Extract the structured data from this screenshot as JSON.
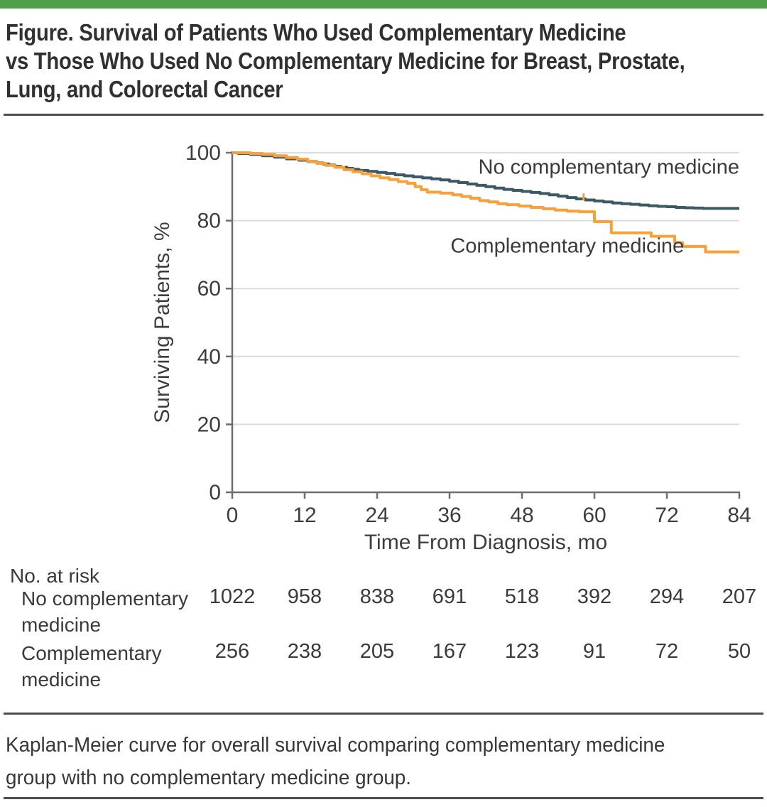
{
  "accent_bar_color": "#50a04b",
  "figure": {
    "title_lines": [
      "Figure. Survival of Patients Who Used Complementary Medicine",
      "vs Those Who Used No Complementary Medicine for Breast, Prostate,",
      "Lung, and Colorectal Cancer"
    ],
    "caption_lines": [
      "Kaplan-Meier curve for overall survival comparing complementary medicine",
      "group with no complementary medicine group."
    ]
  },
  "chart_data": {
    "type": "line",
    "style": "kaplan-meier-step",
    "title": "",
    "xlabel": "Time From Diagnosis, mo",
    "ylabel": "Surviving Patients, %",
    "xlim": [
      0,
      84
    ],
    "ylim": [
      0,
      100
    ],
    "xticks": [
      0,
      12,
      24,
      36,
      48,
      60,
      72,
      84
    ],
    "yticks": [
      0,
      20,
      40,
      60,
      80,
      100
    ],
    "grid": "horizontal-light",
    "legend": "inline-annotations",
    "series": [
      {
        "id": "no-complementary",
        "name": "No complementary medicine",
        "color": "#3c5a66",
        "label_anchor": {
          "x": 84,
          "y": 93.8,
          "align": "end"
        },
        "points": [
          [
            0,
            100
          ],
          [
            1,
            99.8
          ],
          [
            3,
            99.5
          ],
          [
            5,
            99.1
          ],
          [
            7,
            98.7
          ],
          [
            9,
            98.2
          ],
          [
            11,
            97.8
          ],
          [
            12.5,
            97.4
          ],
          [
            14,
            97.0
          ],
          [
            15,
            96.7
          ],
          [
            16,
            96.4
          ],
          [
            17,
            96.0
          ],
          [
            18,
            95.7
          ],
          [
            19,
            95.4
          ],
          [
            20,
            95.1
          ],
          [
            21,
            94.8
          ],
          [
            22.5,
            94.5
          ],
          [
            24,
            94.2
          ],
          [
            25.5,
            93.9
          ],
          [
            27,
            93.5
          ],
          [
            28.5,
            93.2
          ],
          [
            30,
            92.9
          ],
          [
            31.5,
            92.6
          ],
          [
            33,
            92.3
          ],
          [
            34.5,
            92.0
          ],
          [
            36,
            91.6
          ],
          [
            37.5,
            91.2
          ],
          [
            39,
            90.8
          ],
          [
            40.5,
            90.4
          ],
          [
            42,
            90.0
          ],
          [
            43.5,
            89.6
          ],
          [
            45,
            89.2
          ],
          [
            46.5,
            88.9
          ],
          [
            48,
            88.6
          ],
          [
            49.5,
            88.3
          ],
          [
            51,
            88.0
          ],
          [
            52.5,
            87.6
          ],
          [
            54,
            87.2
          ],
          [
            55.5,
            86.8
          ],
          [
            57,
            86.4
          ],
          [
            58.5,
            86.1
          ],
          [
            60,
            85.8
          ],
          [
            61.5,
            85.5
          ],
          [
            63,
            85.2
          ],
          [
            64.5,
            85.0
          ],
          [
            66,
            84.8
          ],
          [
            67.5,
            84.6
          ],
          [
            69,
            84.4
          ],
          [
            70.5,
            84.2
          ],
          [
            72,
            84.1
          ],
          [
            73.5,
            83.9
          ],
          [
            75,
            83.8
          ],
          [
            76.5,
            83.7
          ],
          [
            78,
            83.6
          ],
          [
            84,
            83.6
          ]
        ]
      },
      {
        "id": "complementary",
        "name": "Complementary medicine",
        "color": "#f6a13c",
        "label_anchor": {
          "x": 55.5,
          "y": 70.6,
          "align": "middle"
        },
        "points": [
          [
            0,
            100
          ],
          [
            3,
            99.8
          ],
          [
            5,
            99.5
          ],
          [
            7,
            99.1
          ],
          [
            9,
            98.6
          ],
          [
            10.8,
            98.1
          ],
          [
            12.5,
            97.5
          ],
          [
            14,
            96.9
          ],
          [
            15.5,
            96.3
          ],
          [
            17,
            95.7
          ],
          [
            18.5,
            95.0
          ],
          [
            20,
            94.4
          ],
          [
            21.5,
            93.8
          ],
          [
            23,
            93.2
          ],
          [
            24.5,
            92.6
          ],
          [
            26,
            92.1
          ],
          [
            27.5,
            91.5
          ],
          [
            29,
            91.0
          ],
          [
            30.3,
            90.0
          ],
          [
            31.3,
            89.1
          ],
          [
            32.3,
            88.4
          ],
          [
            34.5,
            88.1
          ],
          [
            36.5,
            87.6
          ],
          [
            38,
            87.1
          ],
          [
            39.5,
            86.6
          ],
          [
            41,
            85.9
          ],
          [
            42.5,
            85.5
          ],
          [
            44,
            85.0
          ],
          [
            45.5,
            84.7
          ],
          [
            47.5,
            84.3
          ],
          [
            49.5,
            83.9
          ],
          [
            51.5,
            83.5
          ],
          [
            53.5,
            83.1
          ],
          [
            55.5,
            82.8
          ],
          [
            57.5,
            82.6
          ],
          [
            60,
            79.7
          ],
          [
            62.8,
            76.4
          ],
          [
            69.4,
            75.4
          ],
          [
            73.3,
            73.5
          ],
          [
            74.6,
            72.4
          ],
          [
            78.4,
            70.8
          ],
          [
            84,
            70.8
          ]
        ]
      }
    ],
    "censor_marks": [
      {
        "series": "complementary",
        "x": 58.2,
        "y": 87
      }
    ]
  },
  "at_risk": {
    "heading": "No. at risk",
    "time_points": [
      0,
      12,
      24,
      36,
      48,
      60,
      72,
      84
    ],
    "rows": [
      {
        "label": "No complementary medicine",
        "counts": [
          1022,
          958,
          838,
          691,
          518,
          392,
          294,
          207
        ]
      },
      {
        "label": "Complementary medicine",
        "counts": [
          256,
          238,
          205,
          167,
          123,
          91,
          72,
          50
        ]
      }
    ]
  }
}
